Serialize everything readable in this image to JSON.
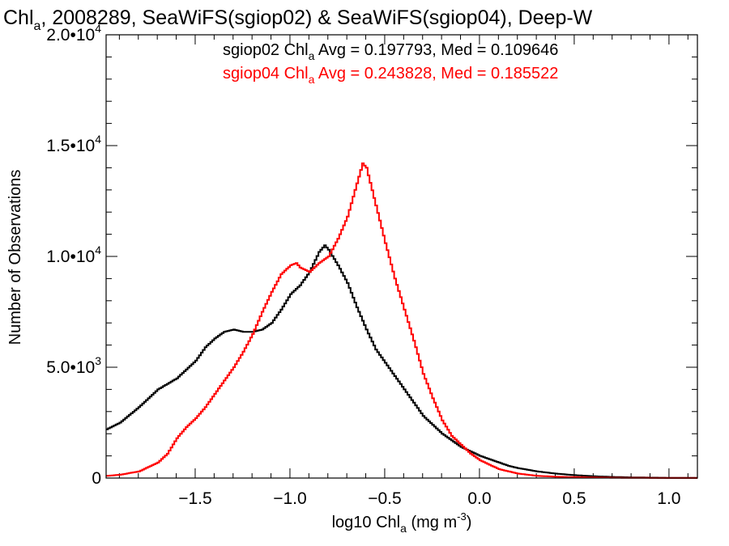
{
  "title_parts": {
    "pre": "Chl",
    "sub": "a",
    "post": ", 2008289, SeaWiFS(sgiop02) & SeaWiFS(sgiop04), Deep-W"
  },
  "legend": [
    {
      "pre": "sgiop02 Chl",
      "sub": "a",
      "post": " Avg = 0.197793, Med = 0.109646",
      "color": "#000000"
    },
    {
      "pre": "sgiop04 Chl",
      "sub": "a",
      "post": " Avg = 0.243828, Med = 0.185522",
      "color": "#ff0000"
    }
  ],
  "xlabel_parts": {
    "pre": "log10 Chl",
    "sub": "a",
    "mid": " (mg m",
    "sup": "-3",
    "post": ")"
  },
  "ylabel": "Number of Observations",
  "chart_data": {
    "type": "line",
    "step": true,
    "xlim": [
      -1.97,
      1.15
    ],
    "ylim": [
      0,
      20000
    ],
    "xticks": [
      -1.5,
      -1.0,
      -0.5,
      0.0,
      0.5,
      1.0
    ],
    "xtick_labels": [
      "−1.5",
      "−1.0",
      "−0.5",
      "0.0",
      "0.5",
      "1.0"
    ],
    "yticks": [
      0,
      5000,
      10000,
      15000,
      20000
    ],
    "ytick_labels": [
      {
        "base": "0",
        "exp": ""
      },
      {
        "base": "5.0•10",
        "exp": "3"
      },
      {
        "base": "1.0•10",
        "exp": "4"
      },
      {
        "base": "1.5•10",
        "exp": "4"
      },
      {
        "base": "2.0•10",
        "exp": "4"
      }
    ],
    "series": [
      {
        "name": "sgiop02",
        "color": "#000000",
        "x": [
          -1.97,
          -1.9,
          -1.8,
          -1.7,
          -1.6,
          -1.5,
          -1.45,
          -1.4,
          -1.35,
          -1.3,
          -1.25,
          -1.2,
          -1.15,
          -1.1,
          -1.05,
          -1.0,
          -0.95,
          -0.9,
          -0.85,
          -0.82,
          -0.8,
          -0.75,
          -0.7,
          -0.65,
          -0.6,
          -0.55,
          -0.5,
          -0.45,
          -0.4,
          -0.35,
          -0.3,
          -0.25,
          -0.2,
          -0.15,
          -0.1,
          -0.05,
          0.0,
          0.05,
          0.1,
          0.15,
          0.2,
          0.3,
          0.4,
          0.5,
          0.6,
          0.7,
          0.8,
          0.9,
          1.0,
          1.15
        ],
        "y": [
          2200,
          2500,
          3200,
          4000,
          4500,
          5300,
          5900,
          6300,
          6600,
          6700,
          6600,
          6600,
          6700,
          7000,
          7600,
          8300,
          8700,
          9300,
          10200,
          10500,
          10300,
          9600,
          8800,
          7700,
          6700,
          5800,
          5200,
          4600,
          4000,
          3400,
          2800,
          2400,
          2000,
          1700,
          1400,
          1200,
          1000,
          850,
          700,
          550,
          450,
          300,
          200,
          130,
          80,
          50,
          30,
          20,
          10,
          5
        ]
      },
      {
        "name": "sgiop04",
        "color": "#ff0000",
        "x": [
          -1.97,
          -1.9,
          -1.8,
          -1.7,
          -1.65,
          -1.6,
          -1.55,
          -1.5,
          -1.45,
          -1.4,
          -1.35,
          -1.3,
          -1.25,
          -1.2,
          -1.15,
          -1.1,
          -1.05,
          -1.0,
          -0.97,
          -0.95,
          -0.9,
          -0.85,
          -0.8,
          -0.75,
          -0.7,
          -0.65,
          -0.62,
          -0.6,
          -0.55,
          -0.5,
          -0.45,
          -0.4,
          -0.35,
          -0.3,
          -0.25,
          -0.2,
          -0.15,
          -0.1,
          -0.05,
          0.0,
          0.05,
          0.1,
          0.15,
          0.2,
          0.3,
          0.4,
          0.5,
          0.6,
          0.7,
          0.8,
          0.9,
          1.0,
          1.15
        ],
        "y": [
          100,
          150,
          300,
          700,
          1100,
          1800,
          2300,
          2700,
          3200,
          3800,
          4400,
          5000,
          5700,
          6500,
          7500,
          8400,
          9200,
          9600,
          9700,
          9500,
          9300,
          9700,
          10000,
          10800,
          11800,
          13300,
          14200,
          14000,
          12300,
          10600,
          9000,
          7600,
          6200,
          4700,
          3600,
          2600,
          1900,
          1500,
          1100,
          800,
          600,
          400,
          300,
          200,
          100,
          60,
          40,
          25,
          15,
          10,
          5,
          3,
          2
        ]
      }
    ],
    "grid": false,
    "legend_position": "top-right"
  }
}
